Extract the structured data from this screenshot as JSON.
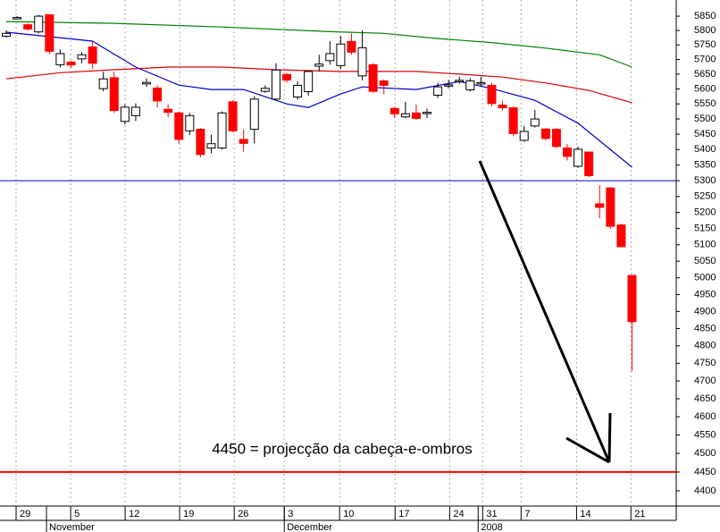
{
  "chart_data": {
    "type": "candlestick",
    "x": [
      0,
      1,
      2,
      3,
      4,
      5,
      6,
      7,
      8,
      9,
      10,
      11,
      12,
      13,
      14,
      15,
      16,
      17,
      18,
      19,
      20,
      21,
      22,
      23,
      24,
      25,
      26,
      27,
      28,
      29,
      30,
      31,
      32,
      33,
      34,
      35,
      36,
      37,
      38,
      39,
      40,
      41,
      42,
      43,
      44,
      45,
      46,
      47,
      48,
      49,
      50,
      51,
      52,
      53,
      54,
      55,
      56,
      57,
      58
    ],
    "open": [
      5780,
      5843,
      5820,
      5795,
      5855,
      5682,
      5691,
      5702,
      5743,
      5601,
      5638,
      5492,
      5511,
      5617,
      5603,
      5532,
      5520,
      5461,
      5466,
      5405,
      5405,
      5557,
      5433,
      5466,
      5592,
      5566,
      5649,
      5573,
      5591,
      5677,
      5696,
      5679,
      5762,
      5644,
      5682,
      5627,
      5535,
      5507,
      5520,
      5520,
      5579,
      5610,
      5625,
      5597,
      5619,
      5612,
      5546,
      5537,
      5430,
      5477,
      5467,
      5466,
      5405,
      5346,
      5392,
      5227,
      5277,
      5161,
      5007
    ],
    "high": [
      5800,
      5850,
      5825,
      5855,
      5855,
      5734,
      5696,
      5725,
      5763,
      5658,
      5658,
      5548,
      5552,
      5636,
      5612,
      5548,
      5525,
      5520,
      5470,
      5448,
      5525,
      5562,
      5466,
      5576,
      5612,
      5687,
      5654,
      5626,
      5663,
      5716,
      5763,
      5781,
      5790,
      5800,
      5687,
      5632,
      5540,
      5557,
      5548,
      5534,
      5621,
      5631,
      5641,
      5636,
      5641,
      5621,
      5560,
      5541,
      5477,
      5530,
      5470,
      5470,
      5418,
      5410,
      5392,
      5286,
      5280,
      5165,
      5010
    ],
    "low": [
      5775,
      5840,
      5800,
      5790,
      5718,
      5673,
      5672,
      5687,
      5668,
      5592,
      5520,
      5482,
      5493,
      5607,
      5538,
      5506,
      5420,
      5447,
      5375,
      5388,
      5400,
      5456,
      5393,
      5420,
      5587,
      5561,
      5621,
      5564,
      5577,
      5659,
      5682,
      5668,
      5716,
      5629,
      5587,
      5582,
      5503,
      5503,
      5497,
      5503,
      5570,
      5602,
      5617,
      5592,
      5607,
      5542,
      5528,
      5443,
      5425,
      5472,
      5430,
      5405,
      5365,
      5341,
      5311,
      5182,
      5150,
      5093,
      4728
    ],
    "close": [
      5790,
      5845,
      5805,
      5850,
      5728,
      5720,
      5681,
      5716,
      5687,
      5634,
      5528,
      5539,
      5539,
      5622,
      5560,
      5522,
      5433,
      5511,
      5384,
      5419,
      5520,
      5461,
      5420,
      5566,
      5602,
      5664,
      5630,
      5612,
      5659,
      5684,
      5720,
      5753,
      5725,
      5740,
      5592,
      5612,
      5517,
      5517,
      5502,
      5522,
      5607,
      5614,
      5629,
      5627,
      5621,
      5551,
      5537,
      5452,
      5459,
      5500,
      5436,
      5410,
      5378,
      5401,
      5316,
      5216,
      5157,
      5094,
      4870
    ],
    "up_color": "#ffffff",
    "down_color": "#ff0000",
    "moving_averages": [
      {
        "color": "#008000",
        "x": [
          0,
          10,
          20,
          30,
          35,
          40,
          45,
          50,
          55,
          58
        ],
        "values": [
          5831,
          5825,
          5812,
          5796,
          5790,
          5772,
          5758,
          5739,
          5716,
          5674
        ]
      },
      {
        "color": "#dd0000",
        "x": [
          0,
          5,
          10,
          15,
          20,
          25,
          31,
          38,
          42,
          46,
          50,
          54,
          58
        ],
        "values": [
          5634,
          5655,
          5665,
          5674,
          5674,
          5665,
          5659,
          5659,
          5650,
          5640,
          5620,
          5595,
          5554
        ]
      },
      {
        "color": "#0000cc",
        "x": [
          0,
          8,
          12,
          16,
          19,
          22,
          26,
          28,
          31,
          33,
          38,
          42,
          45,
          49,
          53,
          58
        ],
        "values": [
          5794,
          5763,
          5674,
          5613,
          5598,
          5598,
          5550,
          5538,
          5583,
          5607,
          5598,
          5625,
          5601,
          5562,
          5486,
          5343
        ]
      }
    ],
    "hlines": [
      {
        "value": 5300,
        "color": "#0000cc"
      },
      {
        "value": 4450,
        "color": "#ff0000"
      }
    ],
    "annotation": "4450 = projecção da cabeça-e-ombros",
    "xlim": [
      -0.58,
      62.1
    ],
    "ylim": [
      4360,
      5907
    ],
    "log_y": true,
    "xgrid": true,
    "yticks": [
      4400,
      4450,
      4500,
      4550,
      4600,
      4650,
      4700,
      4750,
      4800,
      4850,
      4900,
      4950,
      5000,
      5050,
      5100,
      5150,
      5200,
      5250,
      5300,
      5350,
      5400,
      5450,
      5500,
      5550,
      5600,
      5650,
      5700,
      5750,
      5800,
      5850
    ],
    "xticks": [
      {
        "value": 0.91,
        "label": "29"
      },
      {
        "value": 5.97,
        "label": "5"
      },
      {
        "value": 11.02,
        "label": "12"
      },
      {
        "value": 16.07,
        "label": "19"
      },
      {
        "value": 21.13,
        "label": "26"
      },
      {
        "value": 25.77,
        "label": "3"
      },
      {
        "value": 30.9,
        "label": "10"
      },
      {
        "value": 36.04,
        "label": "17"
      },
      {
        "value": 41.1,
        "label": "24"
      },
      {
        "value": 44.16,
        "label": "31"
      },
      {
        "value": 47.72,
        "label": "7"
      },
      {
        "value": 52.86,
        "label": "14"
      },
      {
        "value": 57.9,
        "label": "21"
      }
    ],
    "months": [
      {
        "value": 3.73,
        "label": "November"
      },
      {
        "value": 25.77,
        "label": "December"
      },
      {
        "value": 43.74,
        "label": "2008"
      }
    ]
  }
}
